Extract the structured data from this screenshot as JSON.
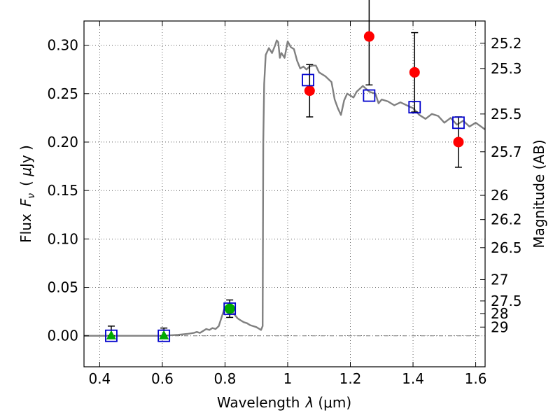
{
  "chart_data": {
    "type": "scatter",
    "xlabel": "Wavelength  λ (μm)",
    "ylabel": "Flux  F_ν  ( μJy )",
    "ylabel_parts": {
      "prefix": "Flux",
      "symbol": "F",
      "subscript": "ν",
      "unit_open": "( ",
      "unit_mu": "μ",
      "unit_rest": "Jy )"
    },
    "xlabel_parts": {
      "prefix": "Wavelength",
      "symbol": "λ",
      "unit": "(μm)"
    },
    "y2label": "Magnitude (AB)",
    "xlim": [
      0.35,
      1.63
    ],
    "ylim": [
      -0.032,
      0.325
    ],
    "grid": true,
    "x_ticks": [
      {
        "value": 0.4,
        "label": "0.4"
      },
      {
        "value": 0.6,
        "label": "0.6"
      },
      {
        "value": 0.8,
        "label": "0.8"
      },
      {
        "value": 1.0,
        "label": "1"
      },
      {
        "value": 1.2,
        "label": "1.2"
      },
      {
        "value": 1.4,
        "label": "1.4"
      },
      {
        "value": 1.6,
        "label": "1.6"
      }
    ],
    "y_ticks": [
      {
        "value": 0.0,
        "label": "0.00"
      },
      {
        "value": 0.05,
        "label": "0.05"
      },
      {
        "value": 0.1,
        "label": "0.10"
      },
      {
        "value": 0.15,
        "label": "0.15"
      },
      {
        "value": 0.2,
        "label": "0.20"
      },
      {
        "value": 0.25,
        "label": "0.25"
      },
      {
        "value": 0.3,
        "label": "0.30"
      }
    ],
    "mag_ticks": [
      {
        "flux": 0.302,
        "label": "25.2"
      },
      {
        "flux": 0.276,
        "label": "25.3"
      },
      {
        "flux": 0.229,
        "label": "25.5"
      },
      {
        "flux": 0.19,
        "label": "25.7"
      },
      {
        "flux": 0.145,
        "label": "26"
      },
      {
        "flux": 0.12,
        "label": "26.2"
      },
      {
        "flux": 0.091,
        "label": "26.5"
      },
      {
        "flux": 0.058,
        "label": "27"
      },
      {
        "flux": 0.036,
        "label": "27.5"
      },
      {
        "flux": 0.023,
        "label": "28"
      },
      {
        "flux": 0.009,
        "label": "29"
      }
    ],
    "sed_model": {
      "color": "#808080",
      "x": [
        0.35,
        0.6,
        0.65,
        0.68,
        0.7,
        0.71,
        0.72,
        0.73,
        0.74,
        0.75,
        0.76,
        0.77,
        0.78,
        0.79,
        0.8,
        0.81,
        0.82,
        0.83,
        0.84,
        0.85,
        0.86,
        0.87,
        0.88,
        0.89,
        0.9,
        0.91,
        0.915,
        0.92,
        0.922,
        0.925,
        0.93,
        0.94,
        0.95,
        0.96,
        0.965,
        0.97,
        0.975,
        0.98,
        0.99,
        1.0,
        1.01,
        1.02,
        1.03,
        1.04,
        1.05,
        1.06,
        1.07,
        1.08,
        1.09,
        1.1,
        1.12,
        1.14,
        1.15,
        1.16,
        1.17,
        1.18,
        1.19,
        1.2,
        1.21,
        1.22,
        1.24,
        1.26,
        1.28,
        1.29,
        1.3,
        1.32,
        1.34,
        1.36,
        1.38,
        1.4,
        1.42,
        1.44,
        1.46,
        1.48,
        1.5,
        1.52,
        1.54,
        1.56,
        1.58,
        1.6,
        1.63
      ],
      "y": [
        0.0,
        0.0,
        0.001,
        0.002,
        0.003,
        0.004,
        0.003,
        0.005,
        0.007,
        0.006,
        0.008,
        0.007,
        0.01,
        0.02,
        0.03,
        0.028,
        0.026,
        0.022,
        0.018,
        0.016,
        0.014,
        0.013,
        0.011,
        0.01,
        0.009,
        0.007,
        0.006,
        0.01,
        0.2,
        0.26,
        0.29,
        0.297,
        0.292,
        0.3,
        0.305,
        0.303,
        0.287,
        0.292,
        0.287,
        0.304,
        0.298,
        0.296,
        0.284,
        0.276,
        0.278,
        0.275,
        0.278,
        0.279,
        0.279,
        0.272,
        0.268,
        0.262,
        0.244,
        0.235,
        0.228,
        0.243,
        0.25,
        0.248,
        0.246,
        0.252,
        0.258,
        0.252,
        0.25,
        0.24,
        0.244,
        0.242,
        0.238,
        0.241,
        0.238,
        0.235,
        0.228,
        0.224,
        0.229,
        0.227,
        0.22,
        0.225,
        0.218,
        0.222,
        0.216,
        0.22,
        0.213
      ]
    },
    "model_photometry": {
      "marker": "open-square",
      "color": "#0000cc",
      "points": [
        {
          "x": 0.437,
          "y": 0.0
        },
        {
          "x": 0.605,
          "y": 0.0
        },
        {
          "x": 0.815,
          "y": 0.028
        },
        {
          "x": 1.065,
          "y": 0.264
        },
        {
          "x": 1.26,
          "y": 0.248
        },
        {
          "x": 1.405,
          "y": 0.236
        },
        {
          "x": 1.545,
          "y": 0.22
        }
      ]
    },
    "observed_photometry": {
      "marker": "filled-circle",
      "color": "#ff0000",
      "points": [
        {
          "x": 1.07,
          "y": 0.253,
          "yerr": [
            0.027,
            0.027
          ]
        },
        {
          "x": 1.26,
          "y": 0.309,
          "yerr": [
            0.05,
            0.05
          ]
        },
        {
          "x": 1.405,
          "y": 0.272,
          "yerr": [
            0.041,
            0.041
          ]
        },
        {
          "x": 1.545,
          "y": 0.2,
          "yerr": [
            0.026,
            0.026
          ]
        }
      ]
    },
    "green_detection": {
      "marker": "filled-circle",
      "color": "#00aa00",
      "points": [
        {
          "x": 0.815,
          "y": 0.028,
          "yerr": [
            0.009,
            0.009
          ]
        }
      ]
    },
    "upper_limits": {
      "marker": "filled-triangle",
      "color": "#00aa00",
      "points": [
        {
          "x": 0.437,
          "y": 0.0,
          "yerr": [
            0.0,
            0.01
          ]
        },
        {
          "x": 0.605,
          "y": 0.0,
          "yerr": [
            0.0,
            0.008
          ]
        }
      ]
    },
    "zero_line": {
      "y": 0.0,
      "color": "#777777",
      "style": "dashdot"
    }
  }
}
